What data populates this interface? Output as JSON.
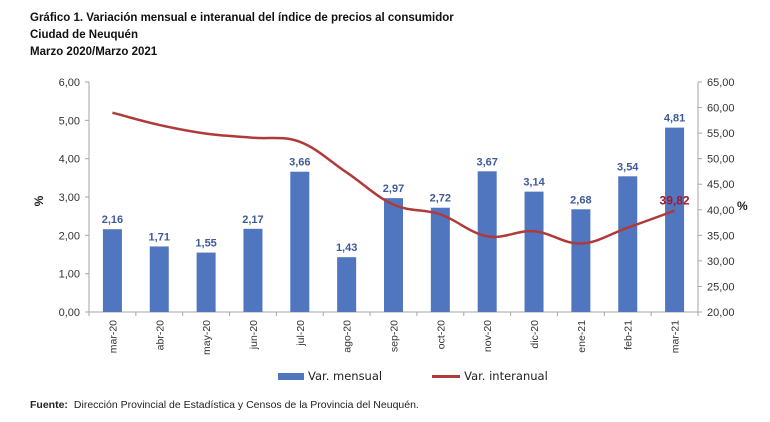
{
  "chart_data": {
    "type": "bar",
    "title": "Gráfico 1. Variación mensual e interanual del índice de precios al consumidor",
    "subtitle_1": "Ciudad de Neuquén",
    "subtitle_2": "Marzo 2020/Marzo 2021",
    "categories": [
      "mar-20",
      "abr-20",
      "may-20",
      "jun-20",
      "jul-20",
      "ago-20",
      "sep-20",
      "oct-20",
      "nov-20",
      "dic-20",
      "ene-21",
      "feb-21",
      "mar-21"
    ],
    "series": [
      {
        "name": "Var. mensual",
        "type": "bar",
        "axis": "left",
        "color": "#4f76bf",
        "values": [
          2.16,
          1.71,
          1.55,
          2.17,
          3.66,
          1.43,
          2.97,
          2.72,
          3.67,
          3.14,
          2.68,
          3.54,
          4.81
        ],
        "data_labels": [
          "2,16",
          "1,71",
          "1,55",
          "2,17",
          "3,66",
          "1,43",
          "2,97",
          "2,72",
          "3,67",
          "3,14",
          "2,68",
          "3,54",
          "4,81"
        ]
      },
      {
        "name": "Var. interanual",
        "type": "line",
        "axis": "right",
        "color": "#b03a3a",
        "values": [
          59.0,
          56.6,
          54.9,
          54.1,
          53.3,
          47.3,
          41.0,
          39.1,
          34.8,
          35.8,
          33.4,
          36.5,
          39.82
        ],
        "data_labels": [
          null,
          null,
          null,
          null,
          null,
          null,
          null,
          null,
          null,
          null,
          null,
          null,
          "39,82"
        ]
      }
    ],
    "ylabel": "%",
    "y2label": "%",
    "xlabel": "",
    "ylim": [
      0,
      6
    ],
    "y2lim": [
      20,
      65
    ],
    "yticks": [
      "0,00",
      "1,00",
      "2,00",
      "3,00",
      "4,00",
      "5,00",
      "6,00"
    ],
    "y2ticks": [
      "20,00",
      "25,00",
      "30,00",
      "35,00",
      "40,00",
      "45,00",
      "50,00",
      "55,00",
      "60,00",
      "65,00"
    ],
    "grid": false,
    "legend_position": "bottom",
    "legend": [
      "Var. mensual",
      "Var. interanual"
    ],
    "source_label": "Fuente:",
    "source_text": "Dirección Provincial de Estadística y Censos de la Provincia del Neuquén."
  }
}
